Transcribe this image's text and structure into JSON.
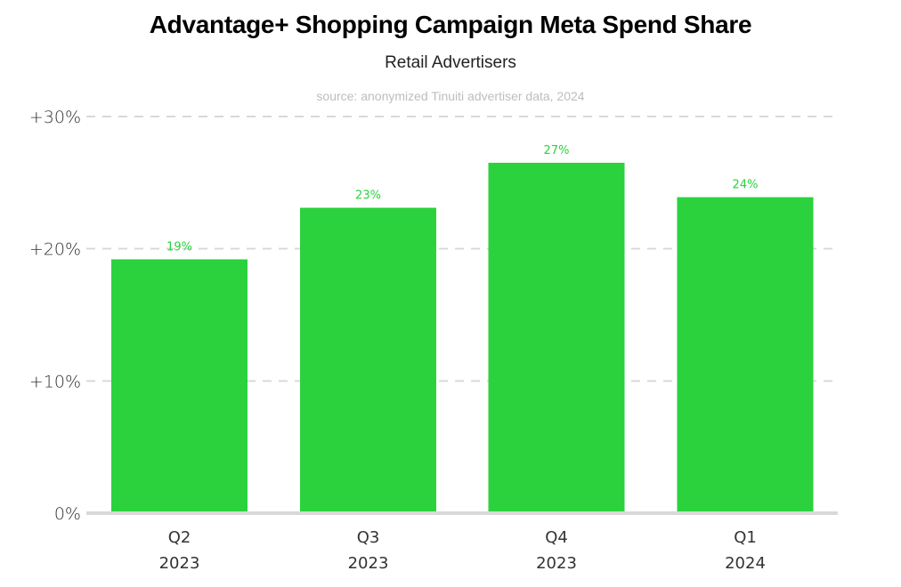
{
  "chart_data": {
    "type": "bar",
    "title": "Advantage+ Shopping Campaign Meta Spend Share",
    "subtitle": "Retail Advertisers",
    "source": "source: anonymized Tinuiti advertiser data, 2024",
    "categories": [
      {
        "quarter": "Q2",
        "year": "2023"
      },
      {
        "quarter": "Q3",
        "year": "2023"
      },
      {
        "quarter": "Q4",
        "year": "2023"
      },
      {
        "quarter": "Q1",
        "year": "2024"
      }
    ],
    "values": [
      19.2,
      23.1,
      26.5,
      23.9
    ],
    "data_labels": [
      "19%",
      "23%",
      "27%",
      "24%"
    ],
    "xlabel": "",
    "ylabel": "",
    "ylim": [
      0,
      30
    ],
    "yticks": [
      0,
      10,
      20,
      30
    ],
    "ytick_labels": [
      "0%",
      "+10%",
      "+20%",
      "+30%"
    ],
    "grid": true,
    "legend": "none",
    "colors": {
      "bar": "#2bd23e",
      "grid": "#d9d9d9",
      "baseline": "#d9d9d9"
    }
  }
}
